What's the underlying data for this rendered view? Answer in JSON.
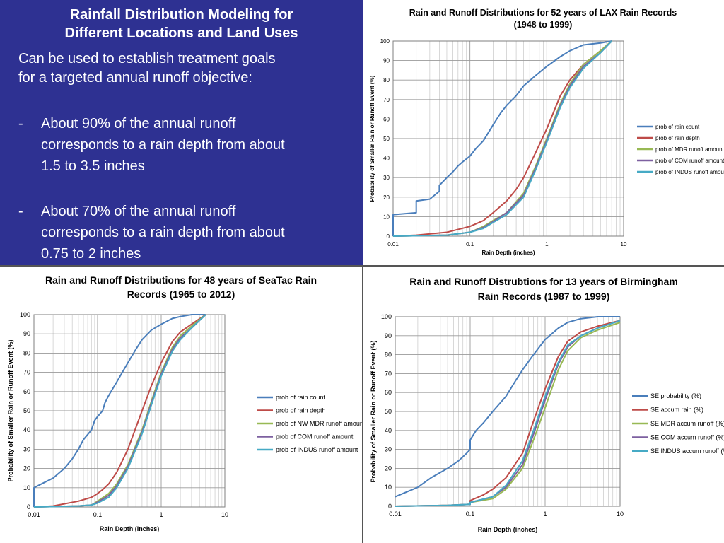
{
  "text_panel": {
    "title_line1": "Rainfall Distribution Modeling for",
    "title_line2": "Different Locations and Land Uses",
    "intro_line1": "Can be used to establish treatment goals",
    "intro_line2": "for a targeted annual runoff objective:",
    "bullets": [
      {
        "dash": "-",
        "lines": [
          "About 90% of the annual runoff",
          "corresponds to a rain depth from about",
          "1.5 to 3.5 inches"
        ]
      },
      {
        "dash": "-",
        "lines": [
          "About 70% of the annual runoff",
          "corresponds to a rain depth from about",
          "0.75 to 2 inches"
        ]
      }
    ],
    "colors": {
      "background": "#2e3192",
      "text": "#ffffff"
    }
  },
  "chart_data": [
    {
      "type": "line",
      "title": [
        "Rain and Runoff Distributions for 52 years of LAX Rain Records",
        "(1948 to 1999)"
      ],
      "xlabel": "Rain Depth (inches)",
      "ylabel": "Probability of Smaller Rain or Runoff Event (%)",
      "xscale": "log",
      "xlim": [
        0.01,
        10
      ],
      "ylim": [
        0,
        100
      ],
      "xticks": [
        "0.01",
        "0.1",
        "1",
        "10"
      ],
      "yticks": [
        "0",
        "10",
        "20",
        "30",
        "40",
        "50",
        "60",
        "70",
        "80",
        "90",
        "100"
      ],
      "grid": true,
      "legend": "right",
      "series": [
        {
          "name": "prob of rain count",
          "color": "#4a7ebb",
          "x": [
            0.01,
            0.01,
            0.02,
            0.02,
            0.03,
            0.04,
            0.04,
            0.05,
            0.06,
            0.07,
            0.08,
            0.1,
            0.12,
            0.15,
            0.2,
            0.25,
            0.3,
            0.4,
            0.5,
            0.7,
            1.0,
            1.5,
            2.0,
            3.0,
            5.0,
            7.0
          ],
          "y": [
            0,
            11,
            12,
            18,
            19,
            23,
            26,
            30,
            33,
            36,
            38,
            41,
            45,
            49,
            57,
            63,
            67,
            72,
            77,
            82,
            87,
            92,
            95,
            98,
            99,
            100
          ]
        },
        {
          "name": "prob of rain depth",
          "color": "#be4b48",
          "x": [
            0.01,
            0.02,
            0.05,
            0.1,
            0.15,
            0.2,
            0.3,
            0.4,
            0.5,
            0.7,
            1.0,
            1.5,
            2.0,
            3.0,
            5.0,
            7.0
          ],
          "y": [
            0,
            0.5,
            2,
            5,
            8,
            12,
            18,
            24,
            30,
            42,
            55,
            72,
            80,
            88,
            95,
            100
          ]
        },
        {
          "name": "prob of MDR runoff amount",
          "color": "#98b954",
          "x": [
            0.01,
            0.05,
            0.1,
            0.15,
            0.2,
            0.3,
            0.5,
            0.7,
            1.0,
            1.5,
            2.0,
            3.0,
            5.0,
            7.0
          ],
          "y": [
            0,
            0.5,
            2,
            5,
            8,
            12,
            22,
            35,
            50,
            68,
            78,
            88,
            95,
            100
          ]
        },
        {
          "name": "prob of COM runoff amount",
          "color": "#7d60a0",
          "x": [
            0.01,
            0.05,
            0.1,
            0.15,
            0.2,
            0.3,
            0.5,
            0.7,
            1.0,
            1.5,
            2.0,
            3.0,
            5.0,
            7.0
          ],
          "y": [
            0,
            0.5,
            2,
            4.5,
            7.5,
            12,
            21,
            34,
            49,
            67,
            77,
            87,
            94,
            100
          ]
        },
        {
          "name": "prob of INDUS runoff amount",
          "color": "#46aac5",
          "x": [
            0.01,
            0.05,
            0.1,
            0.15,
            0.2,
            0.3,
            0.5,
            0.7,
            1.0,
            1.5,
            2.0,
            3.0,
            5.0,
            7.0
          ],
          "y": [
            0,
            0.5,
            2,
            4,
            7,
            11,
            20,
            33,
            48,
            66,
            76,
            86,
            94,
            100
          ]
        }
      ]
    },
    {
      "type": "line",
      "title": [
        "Rain and Runoff Distributions for 48 years of SeaTac Rain",
        "Records (1965 to 2012)"
      ],
      "xlabel": "Rain Depth (inches)",
      "ylabel": "Probability of Smaller Rain or Runoff Event (%)",
      "xscale": "log",
      "xlim": [
        0.01,
        10
      ],
      "ylim": [
        0,
        100
      ],
      "xticks": [
        "0.01",
        "0.1",
        "1",
        "10"
      ],
      "yticks": [
        "0",
        "10",
        "20",
        "30",
        "40",
        "50",
        "60",
        "70",
        "80",
        "90",
        "100"
      ],
      "grid": true,
      "legend": "right",
      "series": [
        {
          "name": "prob of rain count",
          "color": "#4a7ebb",
          "x": [
            0.01,
            0.01,
            0.02,
            0.03,
            0.04,
            0.05,
            0.06,
            0.08,
            0.09,
            0.1,
            0.12,
            0.13,
            0.15,
            0.2,
            0.3,
            0.4,
            0.5,
            0.7,
            1.0,
            1.5,
            2.0,
            3.0,
            5.0
          ],
          "y": [
            0,
            10,
            15,
            20,
            25,
            30,
            35,
            40,
            45,
            47,
            50,
            54,
            58,
            65,
            75,
            82,
            87,
            92,
            95,
            98,
            99,
            100,
            100
          ]
        },
        {
          "name": "prob of rain depth",
          "color": "#be4b48",
          "x": [
            0.01,
            0.02,
            0.05,
            0.08,
            0.09,
            0.1,
            0.12,
            0.15,
            0.2,
            0.3,
            0.5,
            0.7,
            1.0,
            1.5,
            2.0,
            3.0,
            5.0
          ],
          "y": [
            0,
            0.5,
            3,
            5,
            6,
            7,
            9,
            12,
            18,
            30,
            50,
            63,
            75,
            86,
            91,
            95,
            100
          ]
        },
        {
          "name": "prob of NW MDR runoff amount",
          "color": "#98b954",
          "x": [
            0.01,
            0.05,
            0.08,
            0.1,
            0.15,
            0.2,
            0.3,
            0.5,
            0.7,
            1.0,
            1.5,
            2.0,
            3.0,
            5.0
          ],
          "y": [
            0,
            0.5,
            1,
            3,
            7,
            12,
            22,
            40,
            55,
            70,
            83,
            89,
            94,
            100
          ]
        },
        {
          "name": "prob of COM runoff amount",
          "color": "#7d60a0",
          "x": [
            0.01,
            0.05,
            0.08,
            0.1,
            0.15,
            0.2,
            0.3,
            0.5,
            0.7,
            1.0,
            1.5,
            2.0,
            3.0,
            5.0
          ],
          "y": [
            0,
            0.5,
            1,
            2.5,
            6,
            11,
            21,
            39,
            54,
            69,
            82,
            88,
            93,
            100
          ]
        },
        {
          "name": "prob of INDUS runoff amount",
          "color": "#46aac5",
          "x": [
            0.01,
            0.05,
            0.08,
            0.1,
            0.15,
            0.2,
            0.3,
            0.5,
            0.7,
            1.0,
            1.5,
            2.0,
            3.0,
            5.0
          ],
          "y": [
            0,
            0.5,
            1,
            2,
            5,
            10,
            20,
            38,
            53,
            68,
            81,
            87,
            93,
            100
          ]
        }
      ]
    },
    {
      "type": "line",
      "title": [
        "Rain and Runoff Distrubtions for 13 years of Birmingham",
        "Rain Records (1987 to 1999)"
      ],
      "xlabel": "Rain Depth (inches)",
      "ylabel": "Probability of Smaller Rain or Runoff Event (%)",
      "xscale": "log",
      "xlim": [
        0.01,
        10
      ],
      "ylim": [
        0,
        100
      ],
      "xticks": [
        "0.01",
        "0.1",
        "1",
        "10"
      ],
      "yticks": [
        "0",
        "10",
        "20",
        "30",
        "40",
        "50",
        "60",
        "70",
        "80",
        "90",
        "100"
      ],
      "grid": true,
      "legend": "right",
      "series": [
        {
          "name": "SE probability (%)",
          "color": "#4a7ebb",
          "x": [
            0.01,
            0.02,
            0.03,
            0.05,
            0.07,
            0.09,
            0.1,
            0.1,
            0.12,
            0.15,
            0.2,
            0.3,
            0.4,
            0.5,
            0.7,
            1.0,
            1.5,
            2.0,
            3.0,
            5.0,
            10.0
          ],
          "y": [
            5,
            10,
            15,
            20,
            24,
            28,
            30,
            35,
            40,
            44,
            50,
            58,
            66,
            72,
            80,
            88,
            94,
            97,
            99,
            100,
            100
          ]
        },
        {
          "name": "SE accum rain (%)",
          "color": "#be4b48",
          "x": [
            0.01,
            0.05,
            0.1,
            0.1,
            0.15,
            0.2,
            0.3,
            0.5,
            0.7,
            1.0,
            1.5,
            2.0,
            3.0,
            5.0,
            10.0
          ],
          "y": [
            0,
            0.5,
            1,
            3,
            6,
            9,
            15,
            28,
            45,
            62,
            79,
            87,
            92,
            95,
            98
          ]
        },
        {
          "name": "SE MDR accum runoff (%)",
          "color": "#98b954",
          "x": [
            0.01,
            0.05,
            0.1,
            0.1,
            0.2,
            0.3,
            0.5,
            0.7,
            1.0,
            1.5,
            2.0,
            3.0,
            5.0,
            10.0
          ],
          "y": [
            0,
            0.5,
            1,
            2,
            4,
            9,
            20,
            35,
            52,
            72,
            82,
            89,
            93,
            97
          ]
        },
        {
          "name": "SE COM accum runoff (%)",
          "color": "#7d60a0",
          "x": [
            0.01,
            0.05,
            0.1,
            0.1,
            0.2,
            0.3,
            0.5,
            0.7,
            1.0,
            1.5,
            2.0,
            3.0,
            5.0,
            10.0
          ],
          "y": [
            0,
            0.5,
            1,
            2,
            5,
            10,
            22,
            38,
            56,
            75,
            84,
            90,
            94,
            98
          ]
        },
        {
          "name": "SE INDUS accum runoff (%)",
          "color": "#46aac5",
          "x": [
            0.01,
            0.05,
            0.1,
            0.1,
            0.2,
            0.3,
            0.5,
            0.7,
            1.0,
            1.5,
            2.0,
            3.0,
            5.0,
            10.0
          ],
          "y": [
            0,
            0.5,
            1,
            2,
            5,
            11,
            24,
            40,
            58,
            76,
            85,
            90,
            94,
            98
          ]
        }
      ]
    }
  ]
}
